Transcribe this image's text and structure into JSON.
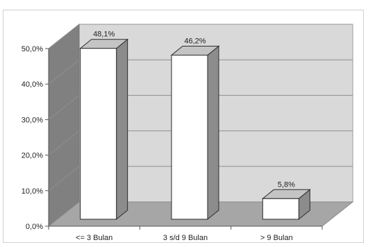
{
  "chart_data": {
    "type": "bar",
    "style": "3d-column",
    "categories": [
      "<= 3 Bulan",
      "3 s/d 9 Bulan",
      "> 9 Bulan"
    ],
    "values": [
      48.1,
      46.2,
      5.8
    ],
    "data_labels": [
      "48,1%",
      "46,2%",
      "5,8%"
    ],
    "ylim": [
      0,
      50
    ],
    "yticks": [
      0,
      10,
      20,
      30,
      40,
      50
    ],
    "ytick_labels": [
      "0,0%",
      "10,0%",
      "20,0%",
      "30,0%",
      "40,0%",
      "50,0%"
    ],
    "grid": true,
    "legend": "none",
    "colors": {
      "bar_front": "#ffffff",
      "bar_side": "#8c8c8c",
      "bar_top": "#c4c4c4",
      "back_wall": "#d9d9d9",
      "side_wall": "#808080",
      "floor": "#a6a6a6",
      "gridline": "#8f8f8f",
      "outline": "#2b2b2b"
    }
  }
}
